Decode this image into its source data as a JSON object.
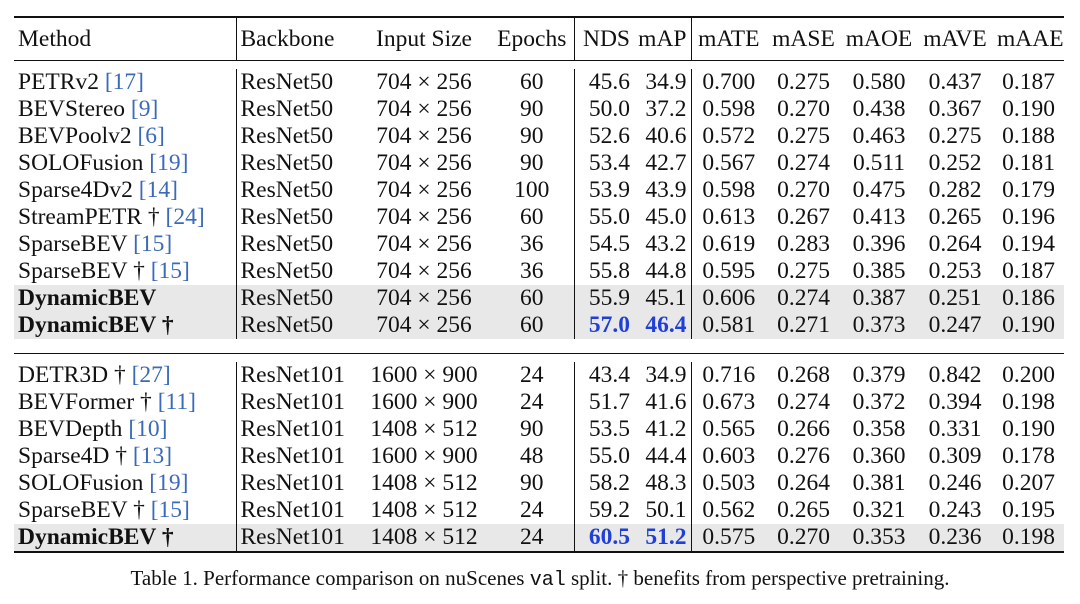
{
  "headers": {
    "method": "Method",
    "backbone": "Backbone",
    "input_size": "Input Size",
    "epochs": "Epochs",
    "nds": "NDS",
    "map": "mAP",
    "mate": "mATE",
    "mase": "mASE",
    "maoe": "mAOE",
    "mave": "mAVE",
    "maae": "mAAE"
  },
  "group1": [
    {
      "method": "PETRv2",
      "ref": "[17]",
      "backbone": "ResNet50",
      "input": "704 × 256",
      "epochs": "60",
      "nds": "45.6",
      "map": "34.9",
      "mate": "0.700",
      "mase": "0.275",
      "maoe": "0.580",
      "mave": "0.437",
      "maae": "0.187"
    },
    {
      "method": "BEVStereo",
      "ref": "[9]",
      "backbone": "ResNet50",
      "input": "704 × 256",
      "epochs": "90",
      "nds": "50.0",
      "map": "37.2",
      "mate": "0.598",
      "mase": "0.270",
      "maoe": "0.438",
      "mave": "0.367",
      "maae": "0.190"
    },
    {
      "method": "BEVPoolv2",
      "ref": "[6]",
      "backbone": "ResNet50",
      "input": "704 × 256",
      "epochs": "90",
      "nds": "52.6",
      "map": "40.6",
      "mate": "0.572",
      "mase": "0.275",
      "maoe": "0.463",
      "mave": "0.275",
      "maae": "0.188"
    },
    {
      "method": "SOLOFusion",
      "ref": "[19]",
      "backbone": "ResNet50",
      "input": "704 × 256",
      "epochs": "90",
      "nds": "53.4",
      "map": "42.7",
      "mate": "0.567",
      "mase": "0.274",
      "maoe": "0.511",
      "mave": "0.252",
      "maae": "0.181"
    },
    {
      "method": "Sparse4Dv2",
      "ref": "[14]",
      "backbone": "ResNet50",
      "input": "704 × 256",
      "epochs": "100",
      "nds": "53.9",
      "map": "43.9",
      "mate": "0.598",
      "mase": "0.270",
      "maoe": "0.475",
      "mave": "0.282",
      "maae": "0.179"
    },
    {
      "method": "StreamPETR †",
      "ref": "[24]",
      "backbone": "ResNet50",
      "input": "704 × 256",
      "epochs": "60",
      "nds": "55.0",
      "map": "45.0",
      "mate": "0.613",
      "mase": "0.267",
      "maoe": "0.413",
      "mave": "0.265",
      "maae": "0.196"
    },
    {
      "method": "SparseBEV",
      "ref": "[15]",
      "backbone": "ResNet50",
      "input": "704 × 256",
      "epochs": "36",
      "nds": "54.5",
      "map": "43.2",
      "mate": "0.619",
      "mase": "0.283",
      "maoe": "0.396",
      "mave": "0.264",
      "maae": "0.194"
    },
    {
      "method": "SparseBEV †",
      "ref": "[15]",
      "backbone": "ResNet50",
      "input": "704 × 256",
      "epochs": "36",
      "nds": "55.8",
      "map": "44.8",
      "mate": "0.595",
      "mase": "0.275",
      "maoe": "0.385",
      "mave": "0.253",
      "maae": "0.187"
    },
    {
      "method": "DynamicBEV",
      "ref": "",
      "backbone": "ResNet50",
      "input": "704 × 256",
      "epochs": "60",
      "nds": "55.9",
      "map": "45.1",
      "mate": "0.606",
      "mase": "0.274",
      "maoe": "0.387",
      "mave": "0.251",
      "maae": "0.186"
    },
    {
      "method": "DynamicBEV †",
      "ref": "",
      "backbone": "ResNet50",
      "input": "704 × 256",
      "epochs": "60",
      "nds": "57.0",
      "map": "46.4",
      "mate": "0.581",
      "mase": "0.271",
      "maoe": "0.373",
      "mave": "0.247",
      "maae": "0.190"
    }
  ],
  "group2": [
    {
      "method": "DETR3D †",
      "ref": "[27]",
      "backbone": "ResNet101",
      "input": "1600 × 900",
      "epochs": "24",
      "nds": "43.4",
      "map": "34.9",
      "mate": "0.716",
      "mase": "0.268",
      "maoe": "0.379",
      "mave": "0.842",
      "maae": "0.200"
    },
    {
      "method": "BEVFormer †",
      "ref": "[11]",
      "backbone": "ResNet101",
      "input": "1600 × 900",
      "epochs": "24",
      "nds": "51.7",
      "map": "41.6",
      "mate": "0.673",
      "mase": "0.274",
      "maoe": "0.372",
      "mave": "0.394",
      "maae": "0.198"
    },
    {
      "method": "BEVDepth",
      "ref": "[10]",
      "backbone": "ResNet101",
      "input": "1408 × 512",
      "epochs": "90",
      "nds": "53.5",
      "map": "41.2",
      "mate": "0.565",
      "mase": "0.266",
      "maoe": "0.358",
      "mave": "0.331",
      "maae": "0.190"
    },
    {
      "method": "Sparse4D †",
      "ref": "[13]",
      "backbone": "ResNet101",
      "input": "1600 × 900",
      "epochs": "48",
      "nds": "55.0",
      "map": "44.4",
      "mate": "0.603",
      "mase": "0.276",
      "maoe": "0.360",
      "mave": "0.309",
      "maae": "0.178"
    },
    {
      "method": "SOLOFusion",
      "ref": "[19]",
      "backbone": "ResNet101",
      "input": "1408 × 512",
      "epochs": "90",
      "nds": "58.2",
      "map": "48.3",
      "mate": "0.503",
      "mase": "0.264",
      "maoe": "0.381",
      "mave": "0.246",
      "maae": "0.207"
    },
    {
      "method": "SparseBEV †",
      "ref": "[15]",
      "backbone": "ResNet101",
      "input": "1408 × 512",
      "epochs": "24",
      "nds": "59.2",
      "map": "50.1",
      "mate": "0.562",
      "mase": "0.265",
      "maoe": "0.321",
      "mave": "0.243",
      "maae": "0.195"
    },
    {
      "method": "DynamicBEV †",
      "ref": "",
      "backbone": "ResNet101",
      "input": "1408 × 512",
      "epochs": "24",
      "nds": "60.5",
      "map": "51.2",
      "mate": "0.575",
      "mase": "0.270",
      "maoe": "0.353",
      "mave": "0.236",
      "maae": "0.198"
    }
  ],
  "caption": {
    "prefix": "Table 1. Performance comparison on nuScenes",
    "code": "val",
    "suffix": "split. † benefits from perspective pretraining."
  }
}
